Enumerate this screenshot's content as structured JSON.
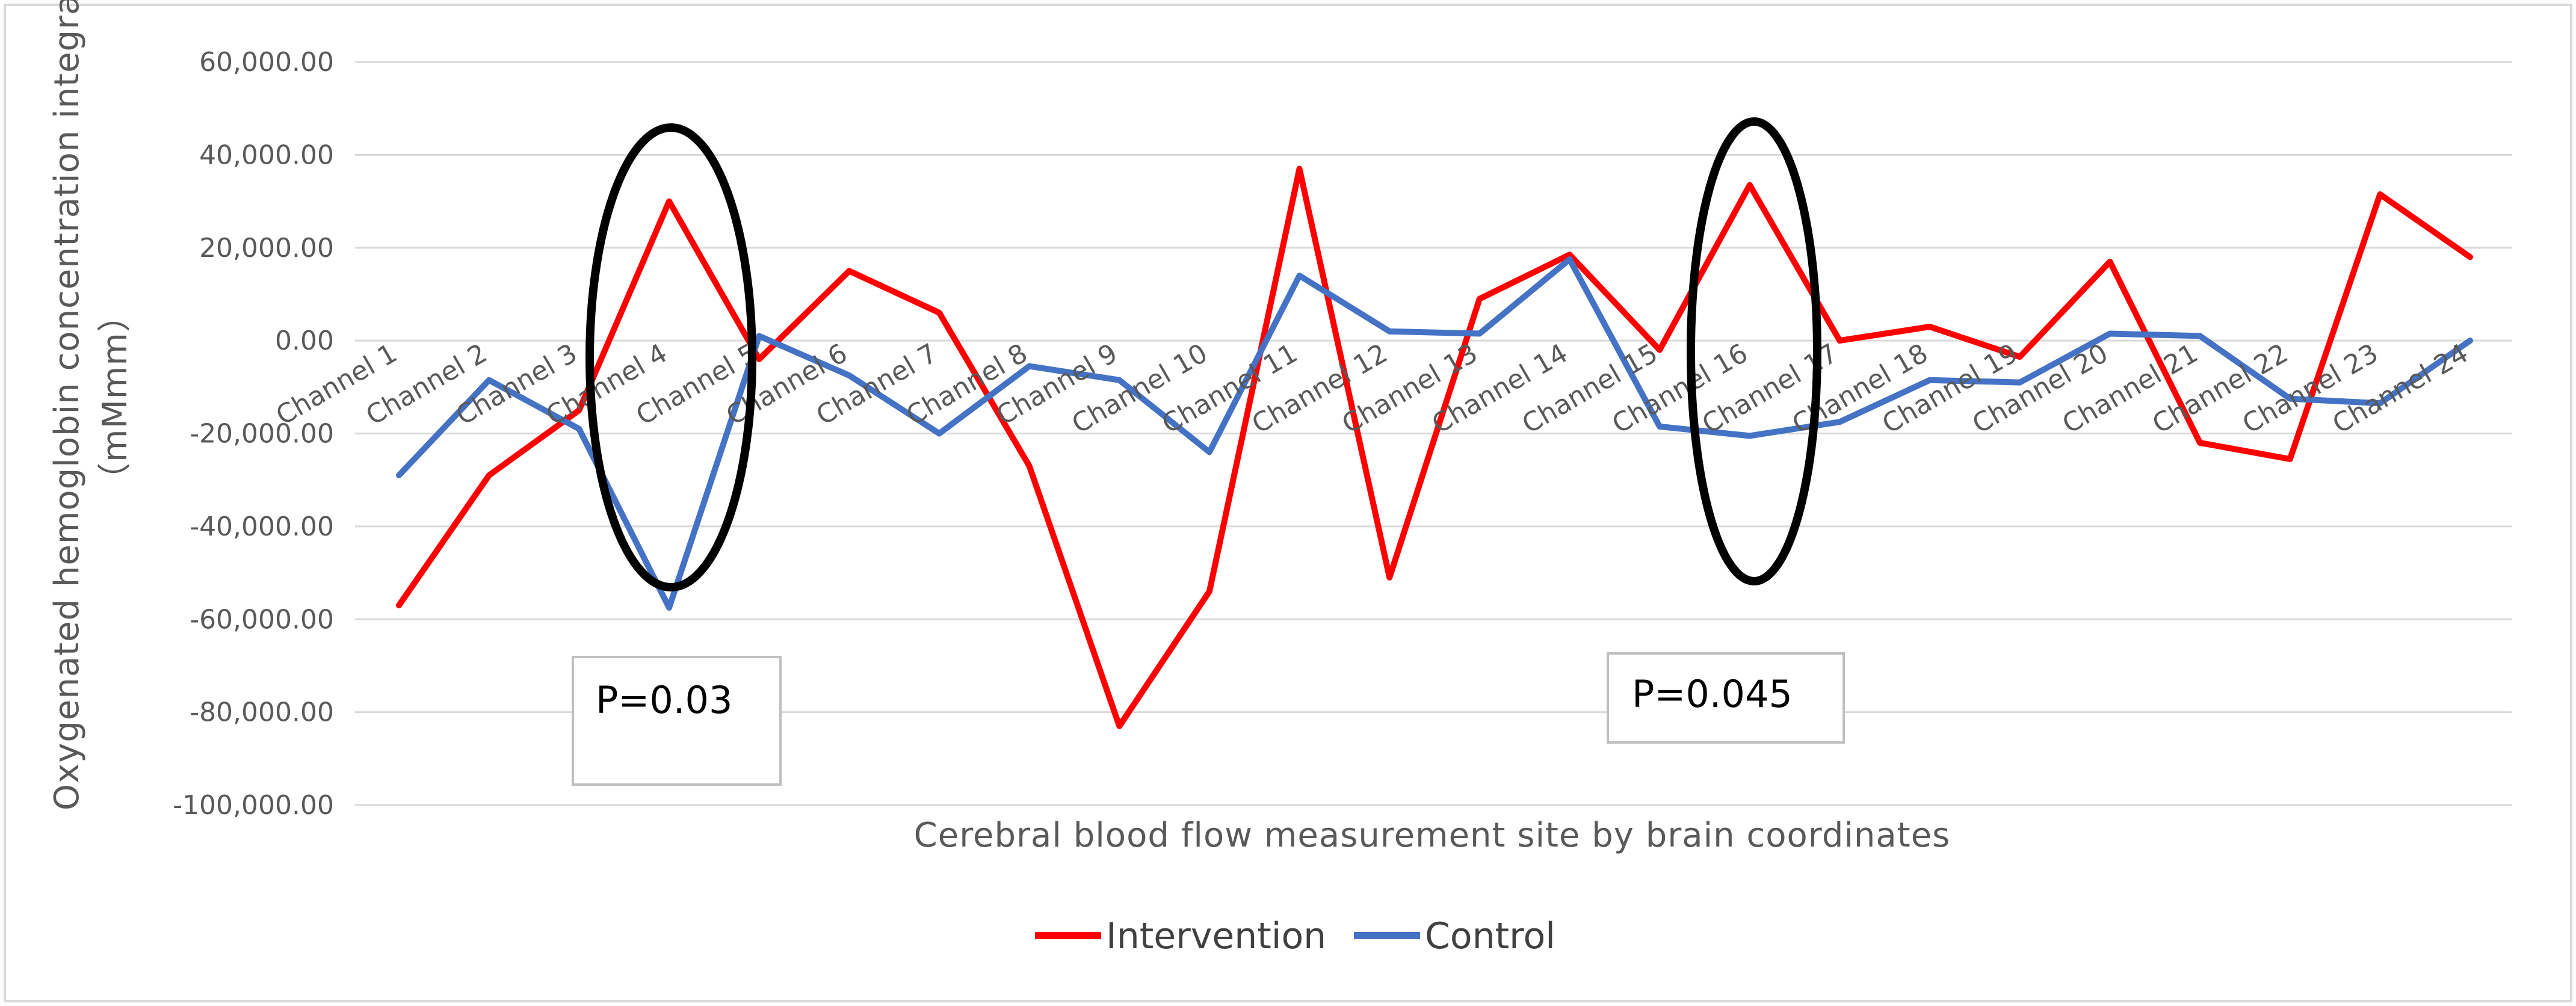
{
  "chart_data": {
    "type": "line",
    "title": "",
    "xlabel": "Cerebral blood flow measurement site by brain coordinates",
    "ylabel": "Oxygenated hemoglobin concentration integral",
    "ylabel_unit": "（mMmm）",
    "ylim": [
      -100000,
      60000
    ],
    "ytick_step": 20000,
    "yticks": [
      "60,000.00",
      "40,000.00",
      "20,000.00",
      "0.00",
      "-20,000.00",
      "-40,000.00",
      "-60,000.00",
      "-80,000.00",
      "-100,000.00"
    ],
    "grid": true,
    "legend_position": "bottom-center",
    "categories": [
      "Channel 1",
      "Channel 2",
      "Channel 3",
      "Channel 4",
      "Channel 5",
      "Channel 6",
      "Channel 7",
      "Channel 8",
      "Channel 9",
      "Channel 10",
      "Channel 11",
      "Channel 12",
      "Channel 13",
      "Channel 14",
      "Channel 15",
      "Channel 16",
      "Channel 17",
      "Channel 18",
      "Channel 19",
      "Channel 20",
      "Channel 21",
      "Channel 22",
      "Channel 23",
      "Channel 24"
    ],
    "series": [
      {
        "name": "Intervention",
        "color": "#ff0000",
        "values": [
          -57000,
          -29000,
          -15000,
          30000,
          -4000,
          15000,
          6000,
          -27000,
          -83000,
          -54000,
          37000,
          -51000,
          9000,
          18500,
          -2000,
          33500,
          0,
          3000,
          -3500,
          17000,
          -22000,
          -25500,
          31500,
          18000
        ]
      },
      {
        "name": "Control",
        "color": "#4472c4",
        "values": [
          -29000,
          -8500,
          -19000,
          -57500,
          1000,
          -7500,
          -20000,
          -5500,
          -8500,
          -24000,
          14000,
          2000,
          1500,
          17500,
          -18500,
          -20500,
          -17500,
          -8500,
          -9000,
          1500,
          1000,
          -12500,
          -13500,
          0
        ]
      }
    ],
    "annotations": [
      {
        "text": "P=0.03",
        "channel": "Channel 4"
      },
      {
        "text": "P=0.045",
        "channel": "Channel 16"
      }
    ]
  }
}
